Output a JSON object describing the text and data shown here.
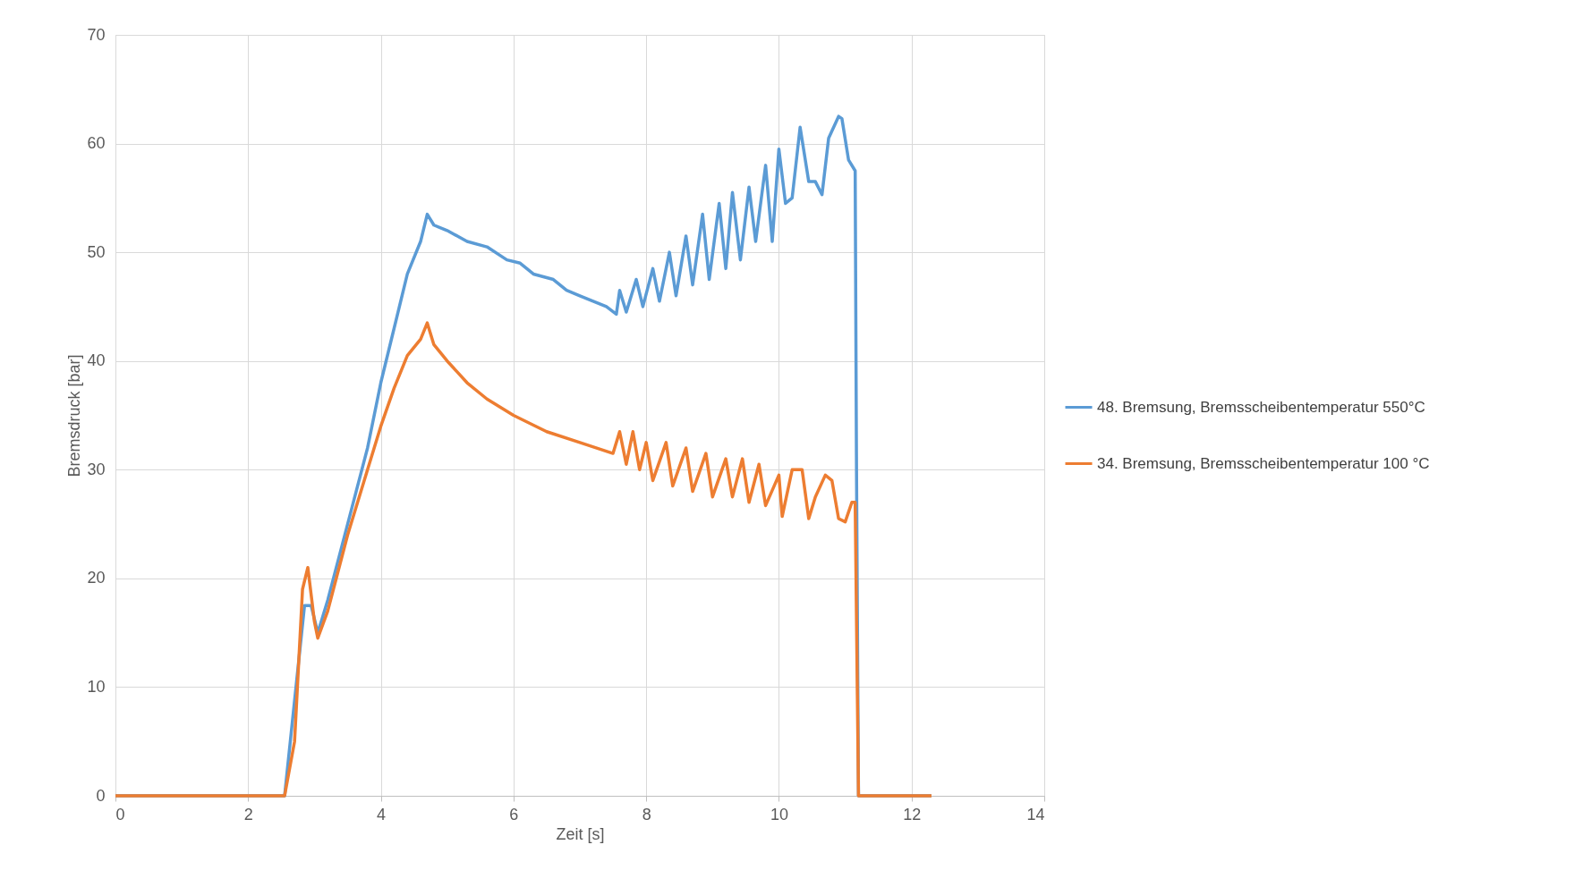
{
  "chart_data": {
    "type": "line",
    "xlabel": "Zeit [s]",
    "ylabel": "Bremsdruck [bar]",
    "xlim": [
      0,
      14
    ],
    "xticks": [
      0,
      2,
      4,
      6,
      8,
      10,
      12,
      14
    ],
    "ylim": [
      0,
      70
    ],
    "yticks": [
      0,
      10,
      20,
      30,
      40,
      50,
      60,
      70
    ],
    "grid": true,
    "legend": "right",
    "marker": "none",
    "line_style": "solid",
    "series": [
      {
        "name": "48. Bremsung, Bremsscheibentemperatur 550°C",
        "color": "#5b9bd5",
        "x": [
          0,
          2.55,
          2.85,
          2.95,
          3.05,
          3.2,
          3.5,
          3.8,
          4.0,
          4.2,
          4.4,
          4.6,
          4.7,
          4.8,
          5.0,
          5.3,
          5.6,
          5.9,
          6.1,
          6.3,
          6.6,
          6.8,
          7.0,
          7.2,
          7.4,
          7.55,
          7.6,
          7.7,
          7.85,
          7.95,
          8.1,
          8.2,
          8.35,
          8.45,
          8.6,
          8.7,
          8.85,
          8.95,
          9.1,
          9.2,
          9.3,
          9.42,
          9.55,
          9.65,
          9.8,
          9.9,
          10.0,
          10.1,
          10.2,
          10.32,
          10.45,
          10.55,
          10.65,
          10.75,
          10.9,
          10.95,
          11.05,
          11.15,
          11.17,
          11.2,
          12.3
        ],
        "values": [
          0,
          0,
          17.5,
          17.5,
          15,
          18,
          25,
          32,
          38,
          43,
          48,
          51,
          53.5,
          52.5,
          52,
          51,
          50.5,
          49.3,
          49,
          48,
          47.5,
          46.5,
          46,
          45.5,
          45,
          44.3,
          46.5,
          44.5,
          47.5,
          45,
          48.5,
          45.5,
          50,
          46,
          51.5,
          47,
          53.5,
          47.5,
          54.5,
          48.5,
          55.5,
          49.3,
          56,
          51,
          58,
          51,
          59.5,
          54.5,
          55,
          61.5,
          56.5,
          56.5,
          55.3,
          60.5,
          62.5,
          62.3,
          58.5,
          57.5,
          30,
          0,
          0
        ]
      },
      {
        "name": "34. Bremsung, Bremsscheibentemperatur 100 °C",
        "color": "#ed7d31",
        "x": [
          0,
          2.55,
          2.7,
          2.82,
          2.9,
          3.0,
          3.05,
          3.2,
          3.5,
          3.8,
          4.0,
          4.2,
          4.4,
          4.6,
          4.7,
          4.8,
          5.0,
          5.3,
          5.6,
          6.0,
          6.5,
          7.0,
          7.5,
          7.6,
          7.7,
          7.8,
          7.9,
          8.0,
          8.1,
          8.3,
          8.4,
          8.6,
          8.7,
          8.9,
          9.0,
          9.2,
          9.3,
          9.45,
          9.55,
          9.7,
          9.8,
          10.0,
          10.05,
          10.2,
          10.35,
          10.45,
          10.55,
          10.7,
          10.8,
          10.9,
          11.0,
          11.1,
          11.15,
          11.2,
          12.3
        ],
        "values": [
          0,
          0,
          5,
          19,
          21,
          16,
          14.5,
          17,
          24,
          30,
          34,
          37.5,
          40.5,
          42,
          43.5,
          41.5,
          40,
          38,
          36.5,
          35,
          33.5,
          32.5,
          31.5,
          33.5,
          30.5,
          33.5,
          30,
          32.5,
          29,
          32.5,
          28.5,
          32,
          28,
          31.5,
          27.5,
          31,
          27.5,
          31,
          27,
          30.5,
          26.7,
          29.5,
          25.7,
          30,
          30,
          25.5,
          27.5,
          29.5,
          29,
          25.5,
          25.2,
          27,
          27,
          0,
          0
        ]
      }
    ]
  }
}
